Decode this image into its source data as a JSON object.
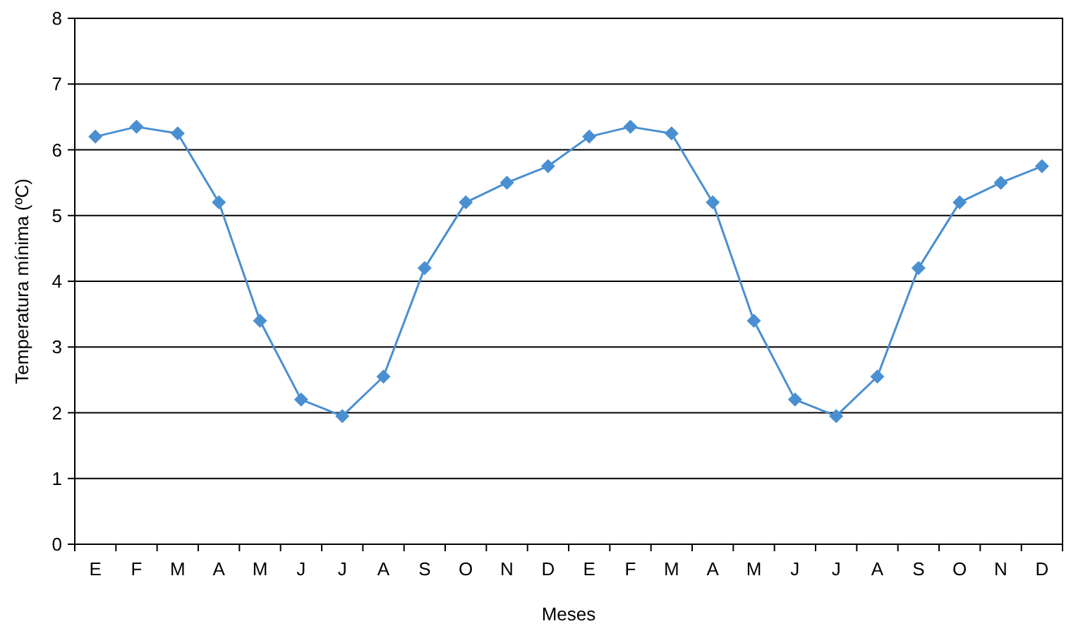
{
  "chart_data": {
    "type": "line",
    "xlabel": "Meses",
    "ylabel": "Temperatura mínima (ºC)",
    "categories": [
      "E",
      "F",
      "M",
      "A",
      "M",
      "J",
      "J",
      "A",
      "S",
      "O",
      "N",
      "D",
      "E",
      "F",
      "M",
      "A",
      "M",
      "J",
      "J",
      "A",
      "S",
      "O",
      "N",
      "D"
    ],
    "series": [
      {
        "color": "#4a8fd1",
        "values": [
          6.2,
          6.35,
          6.25,
          5.2,
          3.4,
          2.2,
          1.95,
          2.55,
          4.2,
          5.2,
          5.5,
          5.75,
          6.2,
          6.35,
          6.25,
          5.2,
          3.4,
          2.2,
          1.95,
          2.55,
          4.2,
          5.2,
          5.5,
          5.75
        ]
      }
    ],
    "ylim": [
      0,
      8
    ],
    "yticks": [
      0,
      1,
      2,
      3,
      4,
      5,
      6,
      7,
      8
    ],
    "grid": "y",
    "marker": "diamond",
    "line_style": "solid"
  }
}
